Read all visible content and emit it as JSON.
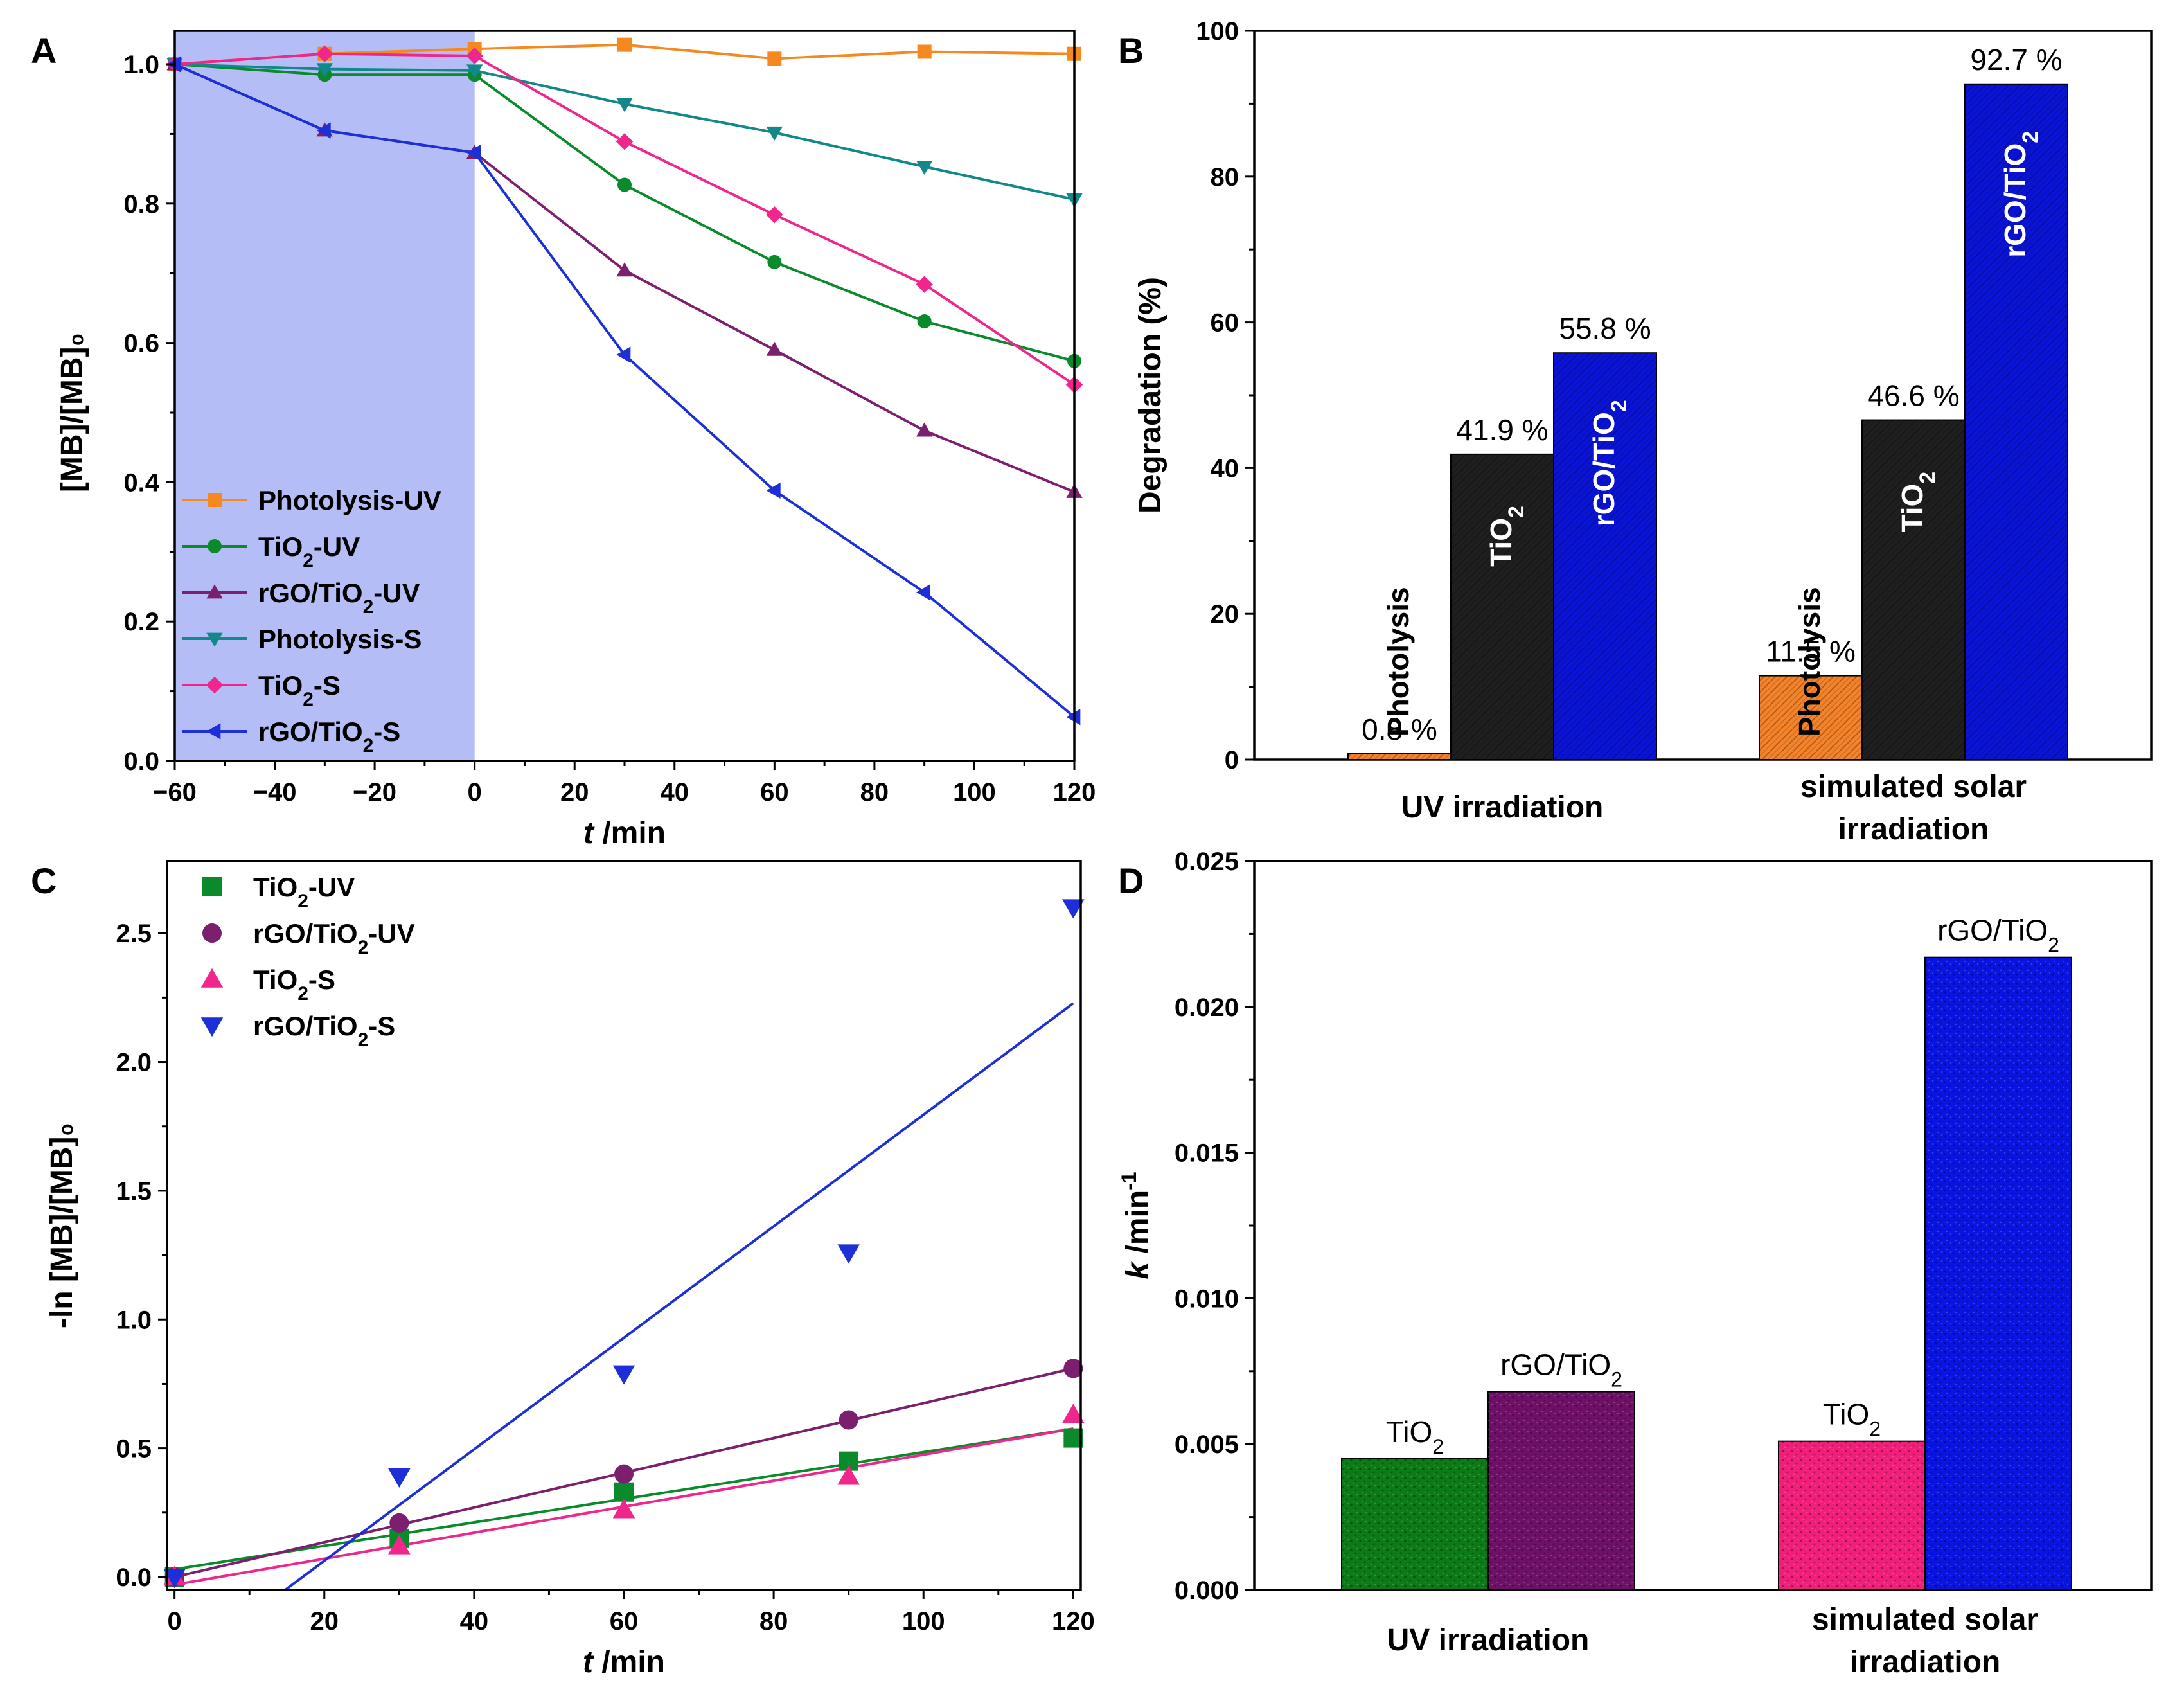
{
  "chart_data": [
    {
      "panel": "A",
      "type": "line",
      "xlabel_italic": "t",
      "xlabel_unit": " /min",
      "ylabel": "[MB]/[MB]₀",
      "xlim": [
        -60,
        120
      ],
      "ylim": [
        0,
        1.0
      ],
      "xticks": [
        -60,
        -40,
        -20,
        0,
        20,
        40,
        60,
        80,
        100,
        120
      ],
      "yticks": [
        0.0,
        0.2,
        0.4,
        0.6,
        0.8,
        1.0
      ],
      "xtick_labels": [
        "−60",
        "−40",
        "−20",
        "0",
        "20",
        "40",
        "60",
        "80",
        "100",
        "120"
      ],
      "ytick_labels": [
        "0.0",
        "0.2",
        "0.4",
        "0.6",
        "0.8",
        "1.0"
      ],
      "dark_region": [
        -60,
        0
      ],
      "dark_color": "#b4bdf5",
      "legend_position": "bottom-left",
      "x": [
        -60,
        -30,
        0,
        30,
        60,
        90,
        120
      ],
      "series": [
        {
          "name": "Photolysis-UV",
          "label_parts": [
            "Photolysis-UV"
          ],
          "color": "#f5891f",
          "marker": "square",
          "values": [
            1.0,
            1.015,
            1.022,
            1.028,
            1.008,
            1.018,
            1.015
          ]
        },
        {
          "name": "TiO2-UV",
          "label_parts": [
            "TiO",
            "2",
            "-UV"
          ],
          "color": "#0a8a2b",
          "marker": "circle",
          "values": [
            1.0,
            0.985,
            0.985,
            0.827,
            0.716,
            0.631,
            0.574
          ]
        },
        {
          "name": "rGO/TiO2-UV",
          "label_parts": [
            "rGO/TiO",
            "2",
            "-UV"
          ],
          "color": "#7b1f6e",
          "marker": "triangle-up",
          "values": [
            1.0,
            0.905,
            0.873,
            0.704,
            0.59,
            0.474,
            0.386
          ]
        },
        {
          "name": "Photolysis-S",
          "label_parts": [
            "Photolysis-S"
          ],
          "color": "#13888a",
          "marker": "triangle-down",
          "values": [
            1.0,
            0.993,
            0.991,
            0.943,
            0.902,
            0.853,
            0.806
          ]
        },
        {
          "name": "TiO2-S",
          "label_parts": [
            "TiO",
            "2",
            "-S"
          ],
          "color": "#f0268c",
          "marker": "diamond",
          "values": [
            1.0,
            1.015,
            1.012,
            0.889,
            0.784,
            0.684,
            0.54
          ]
        },
        {
          "name": "rGO/TiO2-S",
          "label_parts": [
            "rGO/TiO",
            "2",
            "-S"
          ],
          "color": "#1d2fd6",
          "marker": "triangle-left",
          "values": [
            1.0,
            0.905,
            0.873,
            0.583,
            0.388,
            0.242,
            0.063
          ]
        }
      ]
    },
    {
      "panel": "B",
      "type": "bar",
      "ylabel": "Degradation (%)",
      "ylim": [
        0,
        100
      ],
      "yticks": [
        0,
        20,
        40,
        60,
        80,
        100
      ],
      "ytick_labels": [
        "0",
        "20",
        "40",
        "60",
        "80",
        "100"
      ],
      "groups": [
        {
          "label_lines": [
            "UV irradiation"
          ],
          "bars": [
            {
              "name": "Photolysis",
              "inside_parts": [
                "Photolysis"
              ],
              "value": 0.8,
              "value_label": "0.8 %",
              "color": "#f5832a",
              "text_color": "#000000"
            },
            {
              "name": "TiO2",
              "inside_parts": [
                "TiO",
                "2"
              ],
              "value": 41.9,
              "value_label": "41.9 %",
              "color": "#1f1f1f",
              "text_color": "#ffffff"
            },
            {
              "name": "rGO/TiO2",
              "inside_parts": [
                "rGO/TiO",
                "2"
              ],
              "value": 55.8,
              "value_label": "55.8 %",
              "color": "#0a14d9",
              "text_color": "#ffffff"
            }
          ]
        },
        {
          "label_lines": [
            "simulated solar",
            "irradiation"
          ],
          "bars": [
            {
              "name": "Photolysis",
              "inside_parts": [
                "Photolysis"
              ],
              "value": 11.5,
              "value_label": "11.5 %",
              "color": "#f5832a",
              "text_color": "#000000"
            },
            {
              "name": "TiO2",
              "inside_parts": [
                "TiO",
                "2"
              ],
              "value": 46.6,
              "value_label": "46.6 %",
              "color": "#1f1f1f",
              "text_color": "#ffffff"
            },
            {
              "name": "rGO/TiO2",
              "inside_parts": [
                "rGO/TiO",
                "2"
              ],
              "value": 92.7,
              "value_label": "92.7 %",
              "color": "#0a14d9",
              "text_color": "#ffffff"
            }
          ]
        }
      ]
    },
    {
      "panel": "C",
      "type": "scatter",
      "xlabel_italic": "t",
      "xlabel_unit": " /min",
      "ylabel": "-ln [MB]/[MB]₀",
      "xlim": [
        -1,
        121
      ],
      "ylim": [
        -0.05,
        2.78
      ],
      "xticks": [
        0,
        20,
        40,
        60,
        80,
        100,
        120
      ],
      "yticks": [
        0.0,
        0.5,
        1.0,
        1.5,
        2.0,
        2.5
      ],
      "xtick_labels": [
        "0",
        "20",
        "40",
        "60",
        "80",
        "100",
        "120"
      ],
      "ytick_labels": [
        "0.0",
        "0.5",
        "1.0",
        "1.5",
        "2.0",
        "2.5"
      ],
      "legend_position": "top-left",
      "x": [
        0,
        30,
        60,
        90,
        120
      ],
      "series": [
        {
          "name": "TiO2-UV",
          "label_parts": [
            "TiO",
            "2",
            "-UV"
          ],
          "color": "#0a8a2b",
          "marker": "square",
          "values": [
            0.0,
            0.15,
            0.33,
            0.45,
            0.54
          ],
          "fit": [
            0.03,
            0.00455
          ]
        },
        {
          "name": "rGO/TiO2-UV",
          "label_parts": [
            "rGO/TiO",
            "2",
            "-UV"
          ],
          "color": "#7b1f6e",
          "marker": "circle",
          "values": [
            0.0,
            0.21,
            0.4,
            0.61,
            0.81
          ],
          "fit": [
            0.0,
            0.00675
          ]
        },
        {
          "name": "TiO2-S",
          "label_parts": [
            "TiO",
            "2",
            "-S"
          ],
          "color": "#f0268c",
          "marker": "triangle-up",
          "values": [
            0.0,
            0.12,
            0.26,
            0.39,
            0.63
          ],
          "fit": [
            -0.03,
            0.00505
          ]
        },
        {
          "name": "rGO/TiO2-S",
          "label_parts": [
            "rGO/TiO",
            "2",
            "-S"
          ],
          "color": "#1d2fd6",
          "marker": "triangle-down",
          "values": [
            0.0,
            0.39,
            0.79,
            1.26,
            2.6
          ],
          "fit": [
            -0.37,
            0.02165
          ]
        }
      ]
    },
    {
      "panel": "D",
      "type": "bar",
      "ylabel_italic": "k",
      "ylabel_unit": " /min",
      "ylabel_sup": "-1",
      "ylim": [
        0,
        0.025
      ],
      "yticks": [
        0,
        0.005,
        0.01,
        0.015,
        0.02,
        0.025
      ],
      "ytick_labels": [
        "0.000",
        "0.005",
        "0.010",
        "0.015",
        "0.020",
        "0.025"
      ],
      "groups": [
        {
          "label_lines": [
            "UV irradiation"
          ],
          "bars": [
            {
              "name": "TiO2",
              "label_parts": [
                "TiO",
                "2"
              ],
              "value": 0.0045,
              "color": "#0c7a16"
            },
            {
              "name": "rGO/TiO2",
              "label_parts": [
                "rGO/TiO",
                "2"
              ],
              "value": 0.0068,
              "color": "#6e0f68"
            }
          ]
        },
        {
          "label_lines": [
            "simulated solar",
            "irradiation"
          ],
          "bars": [
            {
              "name": "TiO2",
              "label_parts": [
                "TiO",
                "2"
              ],
              "value": 0.0051,
              "color": "#f0207a"
            },
            {
              "name": "rGO/TiO2",
              "label_parts": [
                "rGO/TiO",
                "2"
              ],
              "value": 0.0217,
              "color": "#0a14e0"
            }
          ]
        }
      ]
    }
  ]
}
